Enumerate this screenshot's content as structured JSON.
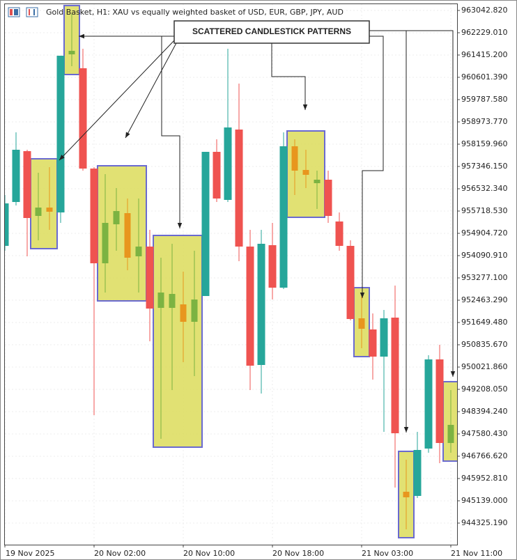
{
  "chart_data": {
    "type": "candlestick",
    "title": "Gold Basket, H1:  XAU vs equally weighted basket of USD, EUR, GBP, JPY, AUD",
    "annotation": "SCATTERED CANDLESTICK PATTERNS",
    "categories": [
      "19 Nov 2025",
      null,
      null,
      null,
      null,
      null,
      null,
      null,
      "20 Nov 02:00",
      null,
      null,
      null,
      null,
      null,
      null,
      null,
      "20 Nov 10:00",
      null,
      null,
      null,
      null,
      null,
      null,
      null,
      "20 Nov 18:00",
      null,
      null,
      null,
      null,
      null,
      null,
      null,
      "21 Nov 03:00",
      null,
      null,
      null,
      null,
      null,
      null,
      null,
      "21 Nov 11:00"
    ],
    "open": [
      954446.9,
      956049.1,
      957905.6,
      955540.5,
      955845.7,
      955667.7,
      961440.6,
      960932.0,
      957269.9,
      953811.2,
      955235.3,
      955642.2,
      954065.5,
      954421.5,
      952183.5,
      952183.5,
      952310.7,
      951674.9,
      952615.9,
      957880.2,
      956125.4,
      958694.0,
      954421.5,
      950098.1,
      954472.4,
      952921.0,
      958083.7,
      957219.0,
      956735.8,
      956862.9,
      955337.1,
      954446.9,
      951802.1,
      951395.2,
      950403.3,
      951827.5,
      945469.6,
      945317.0,
      947046.3,
      950301.6,
      947249.8
    ],
    "high": [
      956303.5,
      958592.3,
      957956.5,
      957117.3,
      957320.7,
      961389.8,
      962915.7,
      961644.1,
      957320.7,
      957066.4,
      956557.8,
      956176.3,
      956176.3,
      955031.9,
      954014.6,
      954523.2,
      953506.0,
      954268.9,
      957880.2,
      958338.0,
      961644.1,
      960372.5,
      955031.9,
      955031.9,
      955286.2,
      958592.3,
      958338.0,
      957956.5,
      957193.6,
      957193.6,
      955667.7,
      954650.4,
      952615.9,
      951980.1,
      952107.2,
      952997.3,
      946639.4,
      947656.7,
      950454.2,
      950835.7,
      949182.6
    ],
    "low": [
      954268.9,
      955922.0,
      954065.5,
      954650.4,
      955031.9,
      955286.2,
      961008.3,
      957193.6,
      948267.1,
      952743.0,
      954268.9,
      953556.8,
      952743.0,
      950962.8,
      947402.4,
      949182.6,
      950199.9,
      949691.2,
      952615.9,
      956049.1,
      956049.1,
      953887.4,
      949182.6,
      949055.4,
      952488.7,
      952870.2,
      956303.5,
      956557.8,
      955794.8,
      955286.2,
      954268.9,
      951725.8,
      950708.5,
      949564.1,
      947656.7,
      945622.2,
      944096.3,
      945240.7,
      946893.8,
      946512.3,
      946893.8
    ],
    "close": [
      955998.3,
      957956.5,
      955464.2,
      955845.7,
      955693.1,
      961389.8,
      961567.8,
      957269.9,
      953811.2,
      955286.2,
      955718.5,
      954014.6,
      954421.5,
      952158.1,
      952743.0,
      952692.2,
      951674.9,
      952488.7,
      957880.2,
      956176.3,
      958770.3,
      954421.5,
      950072.7,
      954523.2,
      952921.0,
      958083.7,
      957193.6,
      957041.0,
      956862.9,
      955540.5,
      954446.9,
      951776.6,
      951420.6,
      950403.3,
      951802.1,
      947605.8,
      945266.1,
      946995.5,
      950301.6,
      947249.8,
      947911.0
    ],
    "highlighted_ranges": [
      [
        3,
        4
      ],
      [
        6,
        6
      ],
      [
        9,
        12
      ],
      [
        14,
        17
      ],
      [
        26,
        28
      ],
      [
        32,
        32
      ],
      [
        36,
        36
      ],
      [
        40,
        40
      ]
    ],
    "up_color": "#26a69a",
    "down_color": "#ef5350",
    "highlight_up_color": "#7cb342",
    "highlight_down_color": "#e8961e",
    "highlight_fill": "#dcdc5a",
    "highlight_border": "#6a6ad0",
    "ylim": [
      943536.8,
      963424.29
    ],
    "yticks": [
      {
        "value": 963042.82,
        "label": "963042.820"
      },
      {
        "value": 962229.01,
        "label": "962229.010"
      },
      {
        "value": 961415.2,
        "label": "961415.200"
      },
      {
        "value": 960601.39,
        "label": "960601.390"
      },
      {
        "value": 959787.58,
        "label": "959787.580"
      },
      {
        "value": 958973.77,
        "label": "958973.770"
      },
      {
        "value": 958159.96,
        "label": "958159.960"
      },
      {
        "value": 957346.15,
        "label": "957346.150"
      },
      {
        "value": 956532.34,
        "label": "956532.340"
      },
      {
        "value": 955718.53,
        "label": "955718.530"
      },
      {
        "value": 954904.72,
        "label": "954904.720"
      },
      {
        "value": 954090.91,
        "label": "954090.910"
      },
      {
        "value": 953277.1,
        "label": "953277.100"
      },
      {
        "value": 952463.29,
        "label": "952463.290"
      },
      {
        "value": 951649.48,
        "label": "951649.480"
      },
      {
        "value": 950835.67,
        "label": "950835.670"
      },
      {
        "value": 950021.86,
        "label": "950021.860"
      },
      {
        "value": 949208.05,
        "label": "949208.050"
      },
      {
        "value": 948394.24,
        "label": "948394.240"
      },
      {
        "value": 947580.43,
        "label": "947580.430"
      },
      {
        "value": 946766.62,
        "label": "946766.620"
      },
      {
        "value": 945952.81,
        "label": "945952.810"
      },
      {
        "value": 945139.0,
        "label": "945139.000"
      },
      {
        "value": 944325.19,
        "label": "944325.190"
      }
    ],
    "grid": true
  }
}
